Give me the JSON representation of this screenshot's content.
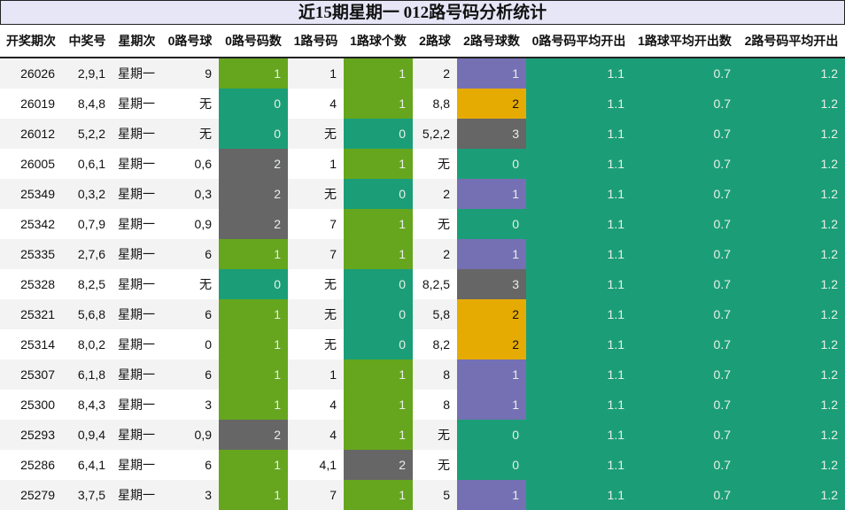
{
  "title": "近15期星期一 012路号码分析统计",
  "headers": [
    "开奖期次",
    "中奖号",
    "星期次",
    "0路号球",
    "0路号码数",
    "1路号码",
    "1路球个数",
    "2路球",
    "2路号球数",
    "0路号码平均开出",
    "1路球平均开出数",
    "2路号码平均开出"
  ],
  "colors": {
    "count_0": "#1b9e77",
    "count_1_green": "#66a61e",
    "count_2_gray": "#666666",
    "count_1_purple": "#7570b3",
    "count_2_orange": "#e6ab02",
    "count_3_gray": "#666666",
    "avg": "#1b9e77"
  },
  "rows": [
    {
      "period": "26026",
      "numbers": "2,9,1",
      "weekday": "星期一",
      "r0": "9",
      "r0n": "1",
      "r1": "1",
      "r1n": "1",
      "r2": "2",
      "r2n": "1",
      "avg0": "1.1",
      "avg1": "0.7",
      "avg2": "1.2"
    },
    {
      "period": "26019",
      "numbers": "8,4,8",
      "weekday": "星期一",
      "r0": "无",
      "r0n": "0",
      "r1": "4",
      "r1n": "1",
      "r2": "8,8",
      "r2n": "2",
      "avg0": "1.1",
      "avg1": "0.7",
      "avg2": "1.2"
    },
    {
      "period": "26012",
      "numbers": "5,2,2",
      "weekday": "星期一",
      "r0": "无",
      "r0n": "0",
      "r1": "无",
      "r1n": "0",
      "r2": "5,2,2",
      "r2n": "3",
      "avg0": "1.1",
      "avg1": "0.7",
      "avg2": "1.2"
    },
    {
      "period": "26005",
      "numbers": "0,6,1",
      "weekday": "星期一",
      "r0": "0,6",
      "r0n": "2",
      "r1": "1",
      "r1n": "1",
      "r2": "无",
      "r2n": "0",
      "avg0": "1.1",
      "avg1": "0.7",
      "avg2": "1.2"
    },
    {
      "period": "25349",
      "numbers": "0,3,2",
      "weekday": "星期一",
      "r0": "0,3",
      "r0n": "2",
      "r1": "无",
      "r1n": "0",
      "r2": "2",
      "r2n": "1",
      "avg0": "1.1",
      "avg1": "0.7",
      "avg2": "1.2"
    },
    {
      "period": "25342",
      "numbers": "0,7,9",
      "weekday": "星期一",
      "r0": "0,9",
      "r0n": "2",
      "r1": "7",
      "r1n": "1",
      "r2": "无",
      "r2n": "0",
      "avg0": "1.1",
      "avg1": "0.7",
      "avg2": "1.2"
    },
    {
      "period": "25335",
      "numbers": "2,7,6",
      "weekday": "星期一",
      "r0": "6",
      "r0n": "1",
      "r1": "7",
      "r1n": "1",
      "r2": "2",
      "r2n": "1",
      "avg0": "1.1",
      "avg1": "0.7",
      "avg2": "1.2"
    },
    {
      "period": "25328",
      "numbers": "8,2,5",
      "weekday": "星期一",
      "r0": "无",
      "r0n": "0",
      "r1": "无",
      "r1n": "0",
      "r2": "8,2,5",
      "r2n": "3",
      "avg0": "1.1",
      "avg1": "0.7",
      "avg2": "1.2"
    },
    {
      "period": "25321",
      "numbers": "5,6,8",
      "weekday": "星期一",
      "r0": "6",
      "r0n": "1",
      "r1": "无",
      "r1n": "0",
      "r2": "5,8",
      "r2n": "2",
      "avg0": "1.1",
      "avg1": "0.7",
      "avg2": "1.2"
    },
    {
      "period": "25314",
      "numbers": "8,0,2",
      "weekday": "星期一",
      "r0": "0",
      "r0n": "1",
      "r1": "无",
      "r1n": "0",
      "r2": "8,2",
      "r2n": "2",
      "avg0": "1.1",
      "avg1": "0.7",
      "avg2": "1.2"
    },
    {
      "period": "25307",
      "numbers": "6,1,8",
      "weekday": "星期一",
      "r0": "6",
      "r0n": "1",
      "r1": "1",
      "r1n": "1",
      "r2": "8",
      "r2n": "1",
      "avg0": "1.1",
      "avg1": "0.7",
      "avg2": "1.2"
    },
    {
      "period": "25300",
      "numbers": "8,4,3",
      "weekday": "星期一",
      "r0": "3",
      "r0n": "1",
      "r1": "4",
      "r1n": "1",
      "r2": "8",
      "r2n": "1",
      "avg0": "1.1",
      "avg1": "0.7",
      "avg2": "1.2"
    },
    {
      "period": "25293",
      "numbers": "0,9,4",
      "weekday": "星期一",
      "r0": "0,9",
      "r0n": "2",
      "r1": "4",
      "r1n": "1",
      "r2": "无",
      "r2n": "0",
      "avg0": "1.1",
      "avg1": "0.7",
      "avg2": "1.2"
    },
    {
      "period": "25286",
      "numbers": "6,4,1",
      "weekday": "星期一",
      "r0": "6",
      "r0n": "1",
      "r1": "4,1",
      "r1n": "2",
      "r2": "无",
      "r2n": "0",
      "avg0": "1.1",
      "avg1": "0.7",
      "avg2": "1.2"
    },
    {
      "period": "25279",
      "numbers": "3,7,5",
      "weekday": "星期一",
      "r0": "3",
      "r0n": "1",
      "r1": "7",
      "r1n": "1",
      "r2": "5",
      "r2n": "1",
      "avg0": "1.1",
      "avg1": "0.7",
      "avg2": "1.2"
    }
  ]
}
